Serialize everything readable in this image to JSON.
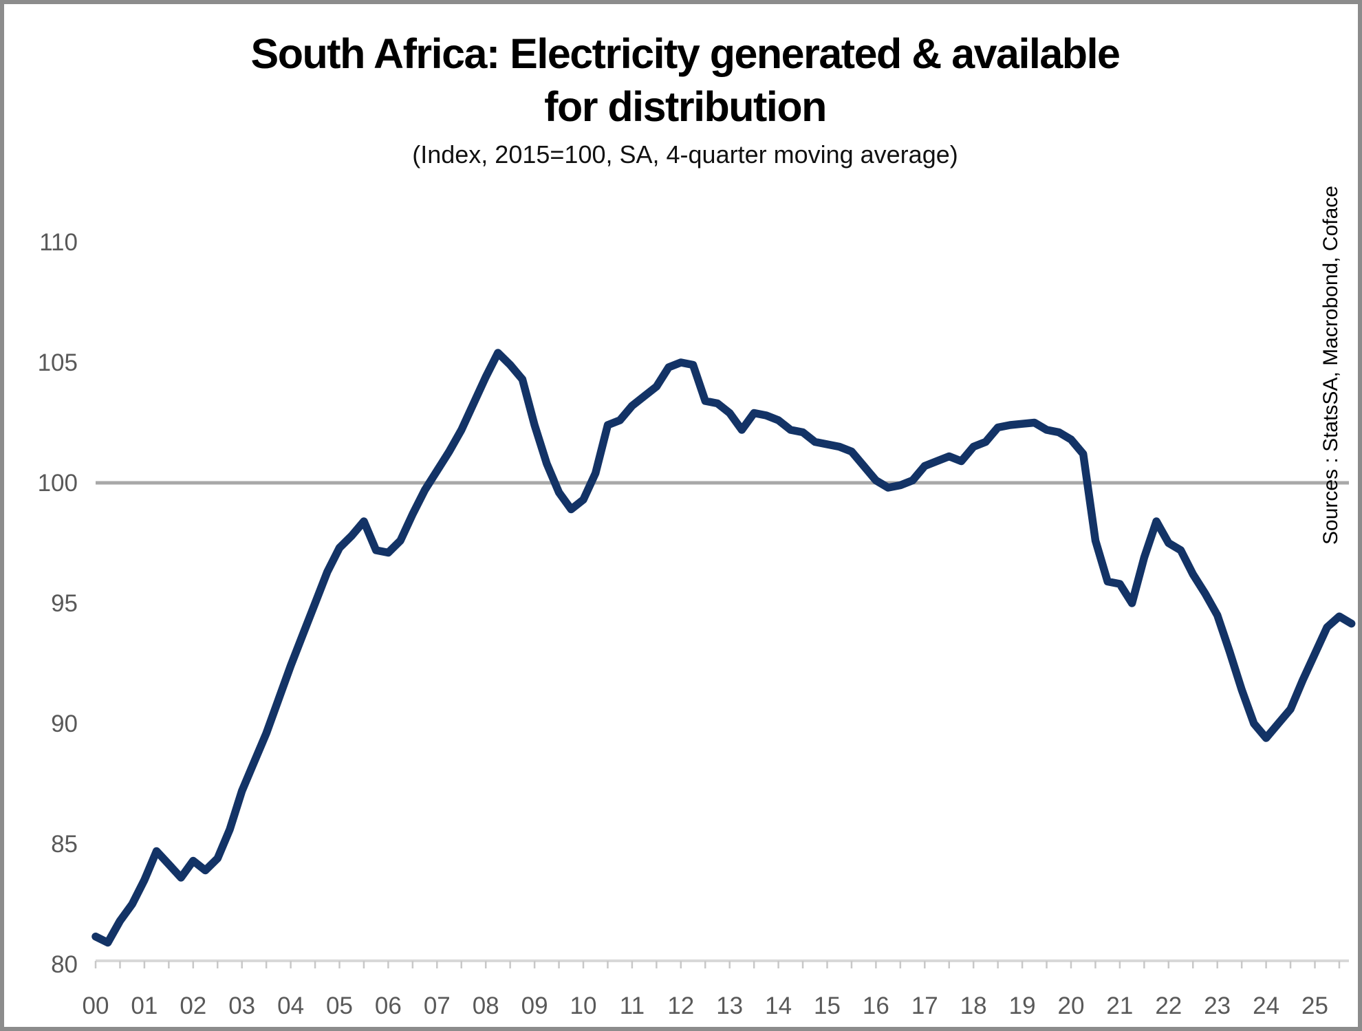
{
  "title": {
    "line1": "South Africa: Electricity generated & available",
    "line2": "for distribution"
  },
  "subtitle": "(Index, 2015=100, SA, 4-quarter moving average)",
  "source_note": "Sources : StatsSA, Macrobond, Coface",
  "colors": {
    "line": "#133366",
    "reference_line": "#A8A8A8",
    "axis_line": "#D8D8D8",
    "tick": "#C8C8C8",
    "axis_label": "#595959",
    "border": "#8C8C8C",
    "background": "#FFFFFF",
    "title_text": "#000000"
  },
  "chart_data": {
    "type": "line",
    "title": "South Africa: Electricity generated & available for distribution",
    "subtitle": "(Index, 2015=100, SA, 4-quarter moving average)",
    "xlabel": "",
    "ylabel": "",
    "x_start_year": 2000,
    "x_step_years": 0.25,
    "x_tick_labels": [
      "00",
      "01",
      "02",
      "03",
      "04",
      "05",
      "06",
      "07",
      "08",
      "09",
      "10",
      "11",
      "12",
      "13",
      "14",
      "15",
      "16",
      "17",
      "18",
      "19",
      "20",
      "21",
      "22",
      "23",
      "24",
      "25"
    ],
    "y_ticks": [
      80,
      85,
      90,
      95,
      100,
      105,
      110
    ],
    "ylim": [
      80,
      110
    ],
    "reference_line": 100,
    "grid": false,
    "legend_position": "none",
    "values": [
      81.15,
      80.9,
      81.8,
      82.5,
      83.5,
      84.7,
      84.15,
      83.6,
      84.3,
      83.9,
      84.4,
      85.6,
      87.2,
      88.4,
      89.6,
      91.0,
      92.4,
      93.7,
      95.0,
      96.3,
      97.3,
      97.8,
      98.4,
      97.2,
      97.1,
      97.6,
      98.7,
      99.7,
      100.5,
      101.3,
      102.2,
      103.3,
      104.4,
      105.4,
      104.9,
      104.3,
      102.4,
      100.8,
      99.6,
      98.9,
      99.3,
      100.4,
      102.4,
      102.6,
      103.2,
      103.6,
      104.0,
      104.8,
      105.0,
      104.9,
      103.4,
      103.3,
      102.9,
      102.2,
      102.9,
      102.8,
      102.6,
      102.2,
      102.1,
      101.7,
      101.6,
      101.5,
      101.3,
      100.7,
      100.1,
      99.8,
      99.9,
      100.1,
      100.7,
      100.9,
      101.1,
      100.9,
      101.5,
      101.7,
      102.3,
      102.4,
      102.45,
      102.5,
      102.2,
      102.1,
      101.8,
      101.2,
      97.6,
      95.9,
      95.8,
      95.0,
      96.9,
      98.4,
      97.5,
      97.2,
      96.2,
      95.4,
      94.5,
      93.0,
      91.4,
      90.0,
      89.4,
      90.0,
      90.6,
      91.8,
      92.9,
      94.0,
      94.45,
      94.15
    ]
  }
}
